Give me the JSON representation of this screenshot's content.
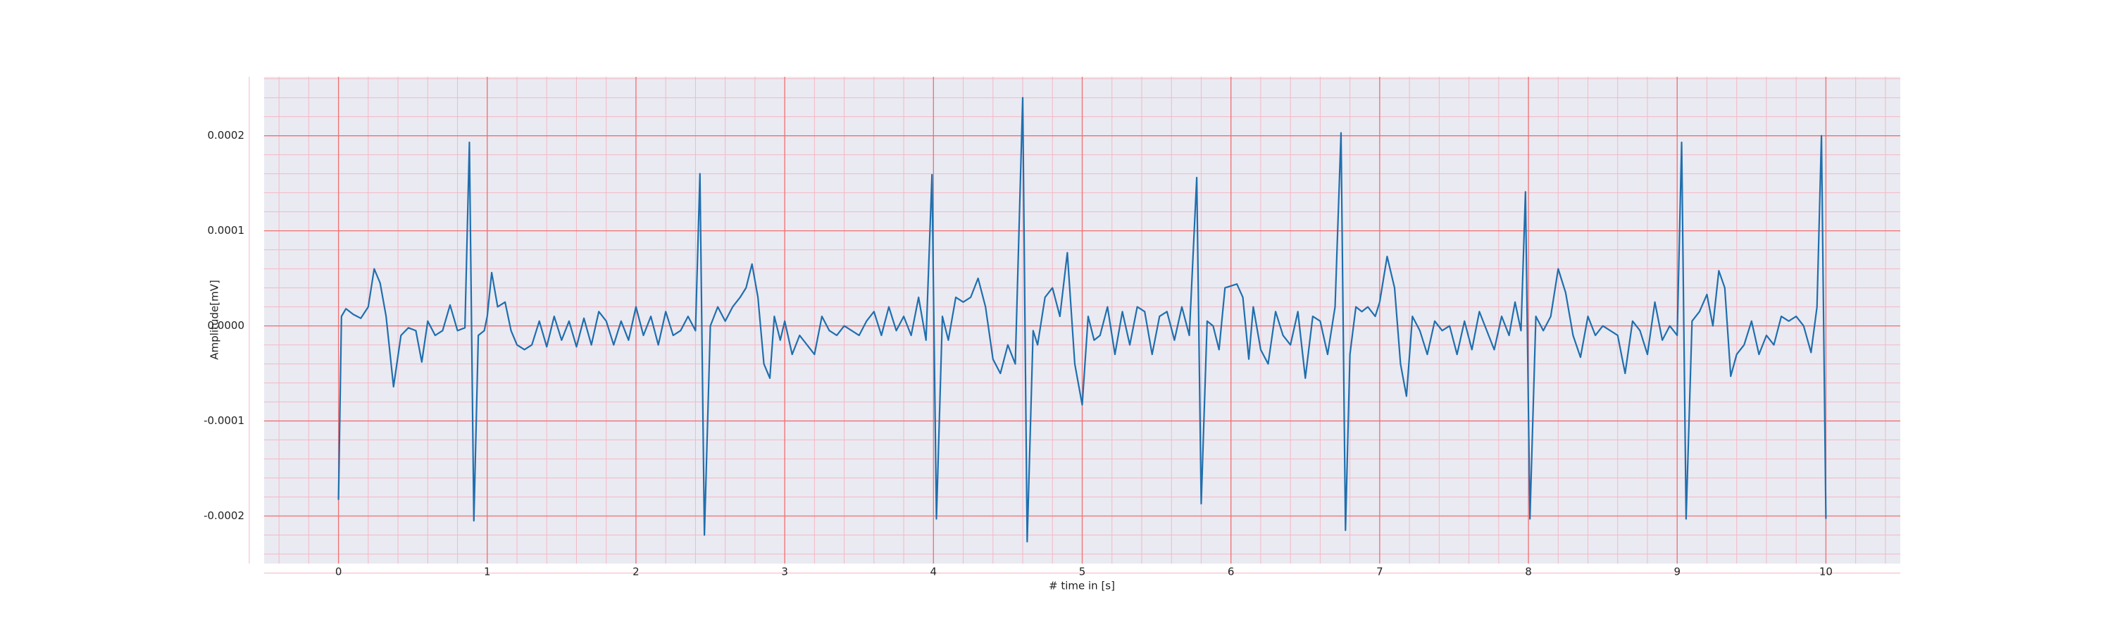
{
  "chart_data": {
    "type": "line",
    "xlabel": "# time in [s]",
    "ylabel": "Amplitude[mV]",
    "color": "#1f6fae",
    "grid": true,
    "minor_grid": true,
    "background": "#eaeaf2",
    "grid_color": "#f07070",
    "minor_grid_color": "#f4b8c4",
    "xlim": [
      -0.5,
      10.5
    ],
    "ylim": [
      -0.00025,
      0.000262
    ],
    "xticks": [
      0,
      1,
      2,
      3,
      4,
      5,
      6,
      7,
      8,
      9,
      10
    ],
    "yticks": [
      -0.0002,
      -0.0001,
      {
        "value": 0,
        "label": "0.0000"
      },
      0.0001,
      0.0002
    ],
    "x": [
      0,
      0.02,
      0.05,
      0.1,
      0.15,
      0.2,
      0.24,
      0.28,
      0.32,
      0.37,
      0.42,
      0.47,
      0.52,
      0.56,
      0.6,
      0.65,
      0.7,
      0.75,
      0.8,
      0.85,
      0.88,
      0.91,
      0.94,
      0.98,
      1.0,
      1.03,
      1.07,
      1.12,
      1.16,
      1.2,
      1.25,
      1.3,
      1.35,
      1.4,
      1.45,
      1.5,
      1.55,
      1.6,
      1.65,
      1.7,
      1.75,
      1.8,
      1.85,
      1.9,
      1.95,
      2.0,
      2.05,
      2.1,
      2.15,
      2.2,
      2.25,
      2.3,
      2.35,
      2.4,
      2.43,
      2.46,
      2.5,
      2.55,
      2.6,
      2.65,
      2.7,
      2.74,
      2.78,
      2.82,
      2.86,
      2.9,
      2.93,
      2.97,
      3.0,
      3.05,
      3.1,
      3.15,
      3.2,
      3.25,
      3.3,
      3.35,
      3.4,
      3.45,
      3.5,
      3.55,
      3.6,
      3.65,
      3.7,
      3.75,
      3.8,
      3.85,
      3.9,
      3.95,
      3.99,
      4.02,
      4.06,
      4.1,
      4.15,
      4.2,
      4.25,
      4.3,
      4.35,
      4.4,
      4.45,
      4.5,
      4.55,
      4.6,
      4.63,
      4.67,
      4.7,
      4.75,
      4.8,
      4.85,
      4.9,
      4.95,
      5.0,
      5.04,
      5.08,
      5.12,
      5.17,
      5.22,
      5.27,
      5.32,
      5.37,
      5.42,
      5.47,
      5.52,
      5.57,
      5.62,
      5.67,
      5.72,
      5.77,
      5.8,
      5.84,
      5.88,
      5.92,
      5.96,
      6.0,
      6.04,
      6.08,
      6.12,
      6.15,
      6.2,
      6.25,
      6.3,
      6.35,
      6.4,
      6.45,
      6.5,
      6.55,
      6.6,
      6.65,
      6.7,
      6.74,
      6.77,
      6.8,
      6.84,
      6.88,
      6.92,
      6.97,
      7.0,
      7.05,
      7.1,
      7.14,
      7.18,
      7.22,
      7.27,
      7.32,
      7.37,
      7.42,
      7.47,
      7.52,
      7.57,
      7.62,
      7.67,
      7.72,
      7.77,
      7.82,
      7.87,
      7.91,
      7.95,
      7.98,
      8.01,
      8.05,
      8.1,
      8.15,
      8.2,
      8.25,
      8.3,
      8.35,
      8.4,
      8.45,
      8.5,
      8.55,
      8.6,
      8.65,
      8.7,
      8.75,
      8.8,
      8.85,
      8.9,
      8.95,
      9.0,
      9.03,
      9.06,
      9.1,
      9.15,
      9.2,
      9.24,
      9.28,
      9.32,
      9.36,
      9.4,
      9.45,
      9.5,
      9.55,
      9.6,
      9.65,
      9.7,
      9.75,
      9.8,
      9.85,
      9.9,
      9.94,
      9.97,
      10.0
    ],
    "values": [
      -0.000183,
      1e-05,
      1.8e-05,
      1.2e-05,
      8e-06,
      2e-05,
      6e-05,
      4.5e-05,
      1e-05,
      -6.4e-05,
      -1e-05,
      -2e-06,
      -5e-06,
      -3.8e-05,
      5e-06,
      -1e-05,
      -5e-06,
      2.2e-05,
      -5e-06,
      -2e-06,
      0.000193,
      -0.000205,
      -1e-05,
      -5e-06,
      1e-05,
      5.6e-05,
      2e-05,
      2.5e-05,
      -5e-06,
      -2e-05,
      -2.5e-05,
      -2e-05,
      5e-06,
      -2.2e-05,
      1e-05,
      -1.5e-05,
      5e-06,
      -2.2e-05,
      8e-06,
      -2e-05,
      1.5e-05,
      5e-06,
      -2e-05,
      5e-06,
      -1.5e-05,
      2e-05,
      -1e-05,
      1e-05,
      -2e-05,
      1.5e-05,
      -1e-05,
      -5e-06,
      1e-05,
      -5e-06,
      0.00016,
      -0.00022,
      0,
      2e-05,
      5e-06,
      2e-05,
      3e-05,
      4e-05,
      6.5e-05,
      3e-05,
      -4e-05,
      -5.5e-05,
      1e-05,
      -1.5e-05,
      5e-06,
      -3e-05,
      -1e-05,
      -2e-05,
      -3e-05,
      1e-05,
      -5e-06,
      -1e-05,
      0,
      -5e-06,
      -1e-05,
      5e-06,
      1.5e-05,
      -1e-05,
      2e-05,
      -5e-06,
      1e-05,
      -1e-05,
      3e-05,
      -1.5e-05,
      0.000159,
      -0.000203,
      1e-05,
      -1.5e-05,
      3e-05,
      2.5e-05,
      3e-05,
      5e-05,
      2e-05,
      -3.5e-05,
      -5e-05,
      -2e-05,
      -4e-05,
      0.00024,
      -0.000227,
      -5e-06,
      -2e-05,
      3e-05,
      4e-05,
      1e-05,
      7.7e-05,
      -4e-05,
      -8.3e-05,
      1e-05,
      -1.5e-05,
      -1e-05,
      2e-05,
      -3e-05,
      1.5e-05,
      -2e-05,
      2e-05,
      1.5e-05,
      -3e-05,
      1e-05,
      1.5e-05,
      -1.5e-05,
      2e-05,
      -1e-05,
      0.000156,
      -0.000187,
      5e-06,
      0,
      -2.5e-05,
      4e-05,
      4.2e-05,
      4.4e-05,
      3e-05,
      -3.5e-05,
      2e-05,
      -2.5e-05,
      -4e-05,
      1.5e-05,
      -1e-05,
      -2e-05,
      1.5e-05,
      -5.5e-05,
      1e-05,
      5e-06,
      -3e-05,
      2e-05,
      0.000203,
      -0.000215,
      -3e-05,
      2e-05,
      1.5e-05,
      2e-05,
      1e-05,
      2.5e-05,
      7.3e-05,
      4e-05,
      -4e-05,
      -7.4e-05,
      1e-05,
      -5e-06,
      -3e-05,
      5e-06,
      -5e-06,
      0,
      -3e-05,
      5e-06,
      -2.5e-05,
      1.5e-05,
      -5e-06,
      -2.5e-05,
      1e-05,
      -1e-05,
      2.5e-05,
      -5e-06,
      0.000141,
      -0.000203,
      1e-05,
      -5e-06,
      1e-05,
      6e-05,
      3.5e-05,
      -1e-05,
      -3.3e-05,
      1e-05,
      -1e-05,
      0,
      -5e-06,
      -1e-05,
      -5e-05,
      5e-06,
      -5e-06,
      -3e-05,
      2.5e-05,
      -1.5e-05,
      0,
      -1e-05,
      0.000193,
      -0.000203,
      5e-06,
      1.5e-05,
      3.3e-05,
      0,
      5.8e-05,
      4e-05,
      -5.3e-05,
      -3e-05,
      -2e-05,
      5e-06,
      -3e-05,
      -1e-05,
      -2e-05,
      1e-05,
      5e-06,
      1e-05,
      0,
      -2.8e-05,
      2e-05,
      0.0002,
      -0.000203
    ]
  }
}
